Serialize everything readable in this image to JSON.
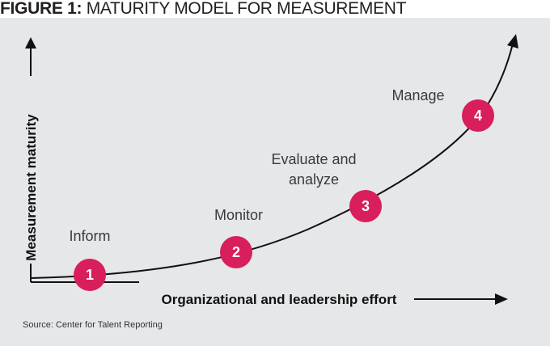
{
  "title": {
    "label": "FIGURE 1:",
    "text": "MATURITY MODEL FOR MEASUREMENT"
  },
  "axes": {
    "x_label": "Organizational and leadership effort",
    "y_label": "Measurement maturity"
  },
  "stages": [
    {
      "number": "1",
      "name": "Inform"
    },
    {
      "number": "2",
      "name": "Monitor"
    },
    {
      "number": "3",
      "name_line1": "Evaluate and",
      "name_line2": "analyze"
    },
    {
      "number": "4",
      "name": "Manage"
    }
  ],
  "source": "Source: Center for Talent Reporting",
  "colors": {
    "panel_background": "#e6e7e8",
    "badge": "#d81e5b",
    "curve": "#111111",
    "text": "#3a3a3a"
  }
}
